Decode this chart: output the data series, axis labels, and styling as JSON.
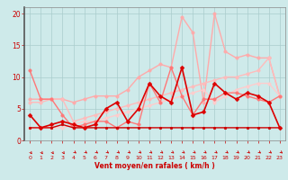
{
  "xlabel": "Vent moyen/en rafales ( km/h )",
  "bg_color": "#ceeaea",
  "grid_color": "#aacccc",
  "xlim": [
    -0.5,
    23.5
  ],
  "ylim": [
    0,
    21
  ],
  "yticks": [
    0,
    5,
    10,
    15,
    20
  ],
  "xticks": [
    0,
    1,
    2,
    3,
    4,
    5,
    6,
    7,
    8,
    9,
    10,
    11,
    12,
    13,
    14,
    15,
    16,
    17,
    18,
    19,
    20,
    21,
    22,
    23
  ],
  "lines": [
    {
      "x": [
        0,
        1,
        2,
        3,
        4,
        5,
        6,
        7,
        8,
        9,
        10,
        11,
        12,
        13,
        14,
        15,
        16,
        17,
        18,
        19,
        20,
        21,
        22,
        23
      ],
      "y": [
        6.5,
        6.5,
        6.5,
        6.5,
        6,
        6.5,
        7,
        7,
        7,
        8,
        10,
        11,
        12,
        11.5,
        19.5,
        17,
        6,
        20,
        14,
        13,
        13.5,
        13,
        13,
        7
      ],
      "color": "#ffaaaa",
      "lw": 1.0,
      "marker": "o",
      "ms": 2.5,
      "zorder": 3
    },
    {
      "x": [
        0,
        1,
        2,
        3,
        4,
        5,
        6,
        7,
        8,
        9,
        10,
        11,
        12,
        13,
        14,
        15,
        16,
        17,
        18,
        19,
        20,
        21,
        22,
        23
      ],
      "y": [
        6,
        6,
        6.5,
        6.5,
        3,
        3.5,
        4,
        4.5,
        5,
        5.5,
        6,
        6.5,
        7,
        7.5,
        8,
        8.5,
        9,
        9.5,
        10,
        10,
        10.5,
        11,
        13,
        7
      ],
      "color": "#ffbbbb",
      "lw": 1.0,
      "marker": "o",
      "ms": 2.5,
      "zorder": 3
    },
    {
      "x": [
        0,
        1,
        2,
        3,
        4,
        5,
        6,
        7,
        8,
        9,
        10,
        11,
        12,
        13,
        14,
        15,
        16,
        17,
        18,
        19,
        20,
        21,
        22,
        23
      ],
      "y": [
        2,
        2,
        2,
        2,
        2.5,
        3,
        3,
        3.5,
        4,
        4.5,
        5,
        5.5,
        6,
        6.5,
        7,
        7.5,
        8,
        6,
        7,
        8,
        8.5,
        9,
        9,
        7
      ],
      "color": "#ffcccc",
      "lw": 1.0,
      "marker": "o",
      "ms": 2.5,
      "zorder": 3
    },
    {
      "x": [
        0,
        1,
        2,
        3,
        4,
        5,
        6,
        7,
        8,
        9,
        10,
        11,
        12,
        13,
        14,
        15,
        16,
        17,
        18,
        19,
        20,
        21,
        22,
        23
      ],
      "y": [
        11,
        6.5,
        6.5,
        4,
        2,
        2.5,
        3,
        3,
        2,
        3,
        2.5,
        9,
        6,
        11.5,
        7,
        4,
        6.5,
        6.5,
        7.5,
        7.5,
        7,
        6.5,
        6,
        7
      ],
      "color": "#ff7777",
      "lw": 1.0,
      "marker": "o",
      "ms": 2.5,
      "zorder": 4
    },
    {
      "x": [
        0,
        1,
        2,
        3,
        4,
        5,
        6,
        7,
        8,
        9,
        10,
        11,
        12,
        13,
        14,
        15,
        16,
        17,
        18,
        19,
        20,
        21,
        22,
        23
      ],
      "y": [
        2,
        2,
        2,
        2.5,
        2,
        2,
        2,
        2,
        2,
        2,
        2,
        2,
        2,
        2,
        2,
        2,
        2,
        2,
        2,
        2,
        2,
        2,
        2,
        2
      ],
      "color": "#cc0000",
      "lw": 1.0,
      "marker": "o",
      "ms": 2.0,
      "zorder": 5
    },
    {
      "x": [
        0,
        1,
        2,
        3,
        4,
        5,
        6,
        7,
        8,
        9,
        10,
        11,
        12,
        13,
        14,
        15,
        16,
        17,
        18,
        19,
        20,
        21,
        22,
        23
      ],
      "y": [
        4,
        2,
        2.5,
        3,
        2.5,
        2,
        2.5,
        5,
        6,
        3,
        5,
        9,
        7,
        6,
        11.5,
        4,
        4.5,
        9,
        7.5,
        6.5,
        7.5,
        7,
        6,
        2
      ],
      "color": "#dd0000",
      "lw": 1.2,
      "marker": "D",
      "ms": 2.5,
      "zorder": 6
    }
  ]
}
